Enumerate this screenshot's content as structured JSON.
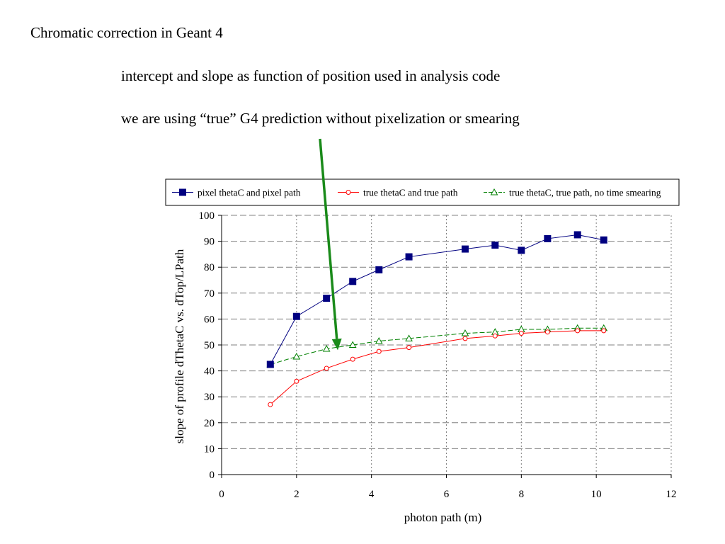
{
  "slide": {
    "title": "Chromatic correction in Geant 4",
    "notes": [
      "intercept and slope as function of position used in analysis code",
      "we are using “true” G4 prediction without pixelization or smearing"
    ]
  },
  "annotation": {
    "arrow_color": "#1a8a1a",
    "arrow_target": {
      "x": 3.1,
      "y": 54
    }
  },
  "chart_data": {
    "type": "line",
    "title": "",
    "xlabel": "photon path (m)",
    "ylabel": "slope of profile dThetaC vs. dTop/LPath",
    "xlim": [
      0,
      12
    ],
    "ylim": [
      0,
      100
    ],
    "xticks": [
      0,
      2,
      4,
      6,
      8,
      10,
      12
    ],
    "yticks": [
      0,
      10,
      20,
      30,
      40,
      50,
      60,
      70,
      80,
      90,
      100
    ],
    "grid": {
      "x": true,
      "y": true
    },
    "legend_position": "top",
    "series": [
      {
        "name": "pixel thetaC and pixel path",
        "color": "#000080",
        "marker": "square-filled",
        "line": "solid",
        "x": [
          1.3,
          2.0,
          2.8,
          3.5,
          4.2,
          5.0,
          6.5,
          7.3,
          8.0,
          8.7,
          9.5,
          10.2
        ],
        "y": [
          42.5,
          61,
          68,
          74.5,
          79,
          84,
          87,
          88.5,
          86.5,
          91,
          92.5,
          90.5
        ]
      },
      {
        "name": "true thetaC and true path",
        "color": "#ff0000",
        "marker": "circle-open",
        "line": "solid",
        "x": [
          1.3,
          2.0,
          2.8,
          3.5,
          4.2,
          5.0,
          6.5,
          7.3,
          8.0,
          8.7,
          9.5,
          10.2
        ],
        "y": [
          27,
          36,
          41,
          44.5,
          47.5,
          49,
          52.5,
          53.5,
          54.5,
          55,
          55.5,
          55.5
        ]
      },
      {
        "name": "true thetaC, true path, no time smearing",
        "color": "#008000",
        "marker": "triangle-open",
        "line": "dashed",
        "x": [
          1.3,
          2.0,
          2.8,
          3.5,
          4.2,
          5.0,
          6.5,
          7.3,
          8.0,
          8.7,
          9.5,
          10.2
        ],
        "y": [
          42.5,
          45.5,
          48.5,
          50,
          51.5,
          52.5,
          54.5,
          55,
          56,
          56,
          56.5,
          56.5
        ]
      }
    ]
  }
}
